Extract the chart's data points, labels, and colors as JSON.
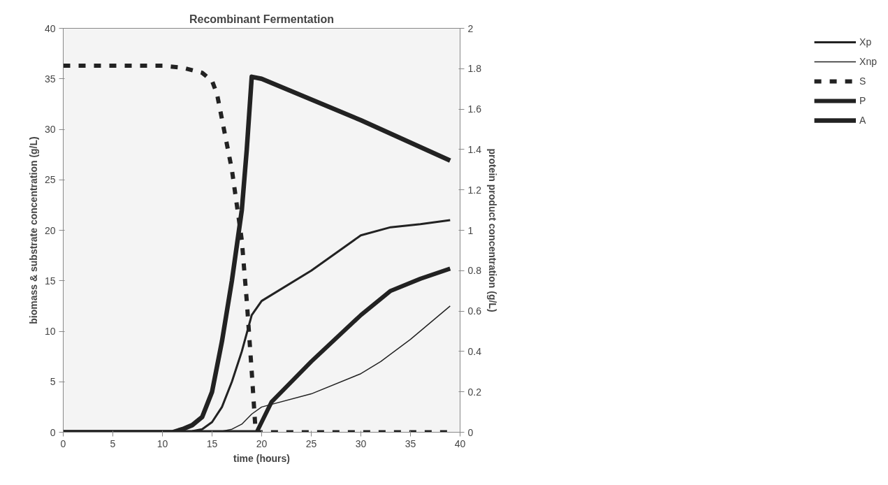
{
  "chart_data": {
    "type": "line",
    "title": "Recombinant Fermentation",
    "xlabel": "time (hours)",
    "ylabel": "biomass & substrate concentration (g/L)",
    "y2label": "protein product concentration (g/L)",
    "xlim": [
      0,
      40
    ],
    "xticks": [
      0,
      5,
      10,
      15,
      20,
      25,
      30,
      35,
      40
    ],
    "ylim": [
      0,
      40
    ],
    "yticks": [
      0,
      5,
      10,
      15,
      20,
      25,
      30,
      35,
      40
    ],
    "y2lim": [
      0,
      2
    ],
    "y2ticks": [
      0,
      0.2,
      0.4,
      0.6,
      0.8,
      1,
      1.2,
      1.4,
      1.6,
      1.8,
      2
    ],
    "grid": false,
    "legend": "right",
    "marker": "none",
    "series": [
      {
        "name": "Xp",
        "color": "#222222",
        "line_style": "solid",
        "x": [
          0,
          10,
          13,
          14,
          15,
          16,
          17,
          18,
          19,
          20,
          25,
          30,
          33,
          36,
          39
        ],
        "values": [
          0,
          0,
          0.1,
          0.3,
          1,
          2.5,
          5,
          8,
          11.6,
          13,
          16,
          19.5,
          20.3,
          20.6,
          21
        ]
      },
      {
        "name": "Xnp",
        "color": "#222222",
        "line_style": "solid",
        "x": [
          0,
          10,
          16,
          17,
          18,
          19,
          20,
          25,
          30,
          32,
          35,
          39
        ],
        "values": [
          0,
          0,
          0.1,
          0.3,
          0.8,
          1.8,
          2.5,
          3.8,
          5.8,
          7,
          9.2,
          12.5
        ]
      },
      {
        "name": "S",
        "color": "#222222",
        "line_style": "dashed",
        "x": [
          0,
          10,
          12,
          14,
          15,
          15.5,
          16,
          17,
          18,
          18.5,
          19,
          19.4,
          25,
          30,
          39
        ],
        "values": [
          36.3,
          36.3,
          36.1,
          35.6,
          34.8,
          33.5,
          31,
          26,
          19,
          13,
          6,
          0,
          0,
          0,
          0
        ]
      },
      {
        "name": "P",
        "color": "#222222",
        "line_style": "solid",
        "axis": "y2",
        "x": [
          0,
          19.5,
          20,
          21,
          25,
          30,
          33,
          36,
          39
        ],
        "values": [
          0,
          0,
          0.05,
          0.15,
          0.35,
          0.58,
          0.7,
          0.76,
          0.81
        ]
      },
      {
        "name": "A",
        "color": "#222222",
        "line_style": "solid",
        "x": [
          0,
          11,
          12,
          13,
          14,
          15,
          16,
          17,
          18,
          18.5,
          19,
          20,
          30,
          39
        ],
        "values": [
          0,
          0,
          0.3,
          0.7,
          1.5,
          4,
          9,
          15,
          22,
          28,
          35.2,
          35,
          30.9,
          26.9
        ]
      }
    ]
  }
}
